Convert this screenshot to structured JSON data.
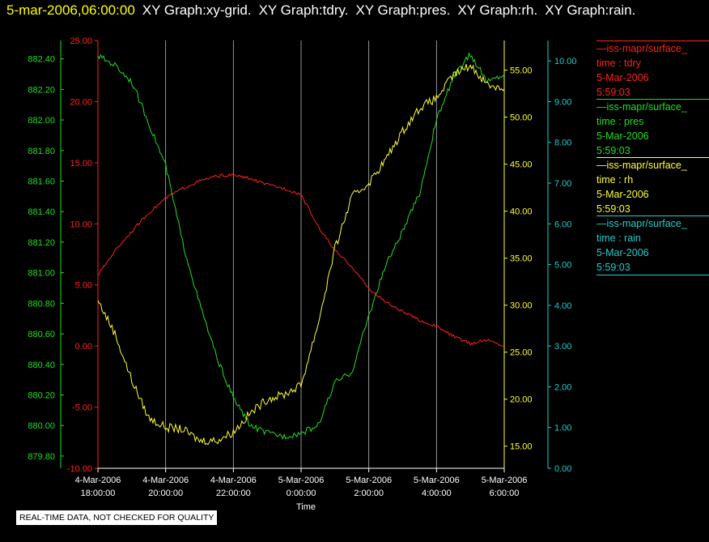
{
  "header": {
    "timestamp": "5-mar-2006,06:00:00",
    "graphs": [
      "XY Graph:xy-grid.",
      "XY Graph:tdry.",
      "XY Graph:pres.",
      "XY Graph:rh.",
      "XY Graph:rain."
    ]
  },
  "legend": [
    {
      "source": "—iss-mapr/surface_",
      "field": "time : tdry",
      "date": "5-Mar-2006",
      "time": "5:59:03",
      "color": "#ff2020"
    },
    {
      "source": "—iss-mapr/surface_",
      "field": "time : pres",
      "date": "5-Mar-2006",
      "time": "5:59:03",
      "color": "#22dd22"
    },
    {
      "source": "—iss-mapr/surface_",
      "field": "time : rh",
      "date": "5-Mar-2006",
      "time": "5:59:03",
      "color": "#ffff33"
    },
    {
      "source": "—iss-mapr/surface_",
      "field": "time : rain",
      "date": "5-Mar-2006",
      "time": "5:59:03",
      "color": "#22cccc"
    }
  ],
  "notice": "REAL-TIME DATA, NOT CHECKED FOR QUALITY",
  "chart_data": {
    "type": "line",
    "xlabel": "Time",
    "x_ticks": [
      {
        "date": "4-Mar-2006",
        "time": "18:00:00"
      },
      {
        "date": "4-Mar-2006",
        "time": "20:00:00"
      },
      {
        "date": "4-Mar-2006",
        "time": "22:00:00"
      },
      {
        "date": "5-Mar-2006",
        "time": "0:00:00"
      },
      {
        "date": "5-Mar-2006",
        "time": "2:00:00"
      },
      {
        "date": "5-Mar-2006",
        "time": "4:00:00"
      },
      {
        "date": "5-Mar-2006",
        "time": "6:00:00"
      }
    ],
    "x_range": [
      "4-Mar-2006 18:00:00",
      "5-Mar-2006 06:00:00"
    ],
    "vertical_grid": true,
    "axes": {
      "tdry": {
        "side": "left-inner",
        "color": "#ff2020",
        "range": [
          -10,
          25
        ],
        "ticks": [
          "-10.00",
          "-5.00",
          "0.00",
          "5.00",
          "10.00",
          "15.00",
          "20.00",
          "25.00"
        ]
      },
      "pres": {
        "side": "left-outer",
        "color": "#22dd22",
        "range": [
          879.72,
          882.52
        ],
        "ticks": [
          "879.80",
          "880.00",
          "880.20",
          "880.40",
          "880.60",
          "880.80",
          "881.00",
          "881.20",
          "881.40",
          "881.60",
          "881.80",
          "882.00",
          "882.20",
          "882.40"
        ]
      },
      "rh": {
        "side": "right-inner",
        "color": "#ffff33",
        "range": [
          12.65,
          58.15
        ],
        "ticks": [
          "15.00",
          "20.00",
          "25.00",
          "30.00",
          "35.00",
          "40.00",
          "45.00",
          "50.00",
          "55.00"
        ]
      },
      "rain": {
        "side": "right-outer",
        "color": "#22cccc",
        "range": [
          0,
          10.5
        ],
        "ticks": [
          "0.00",
          "1.00",
          "2.00",
          "3.00",
          "4.00",
          "5.00",
          "6.00",
          "7.00",
          "8.00",
          "9.00",
          "10.00"
        ]
      }
    },
    "series": [
      {
        "name": "tdry",
        "color": "#ff2020",
        "x_hours": [
          0,
          0.5,
          1,
          1.5,
          2,
          2.5,
          3,
          3.5,
          4,
          4.5,
          5,
          5.5,
          6,
          6.5,
          7,
          7.5,
          8,
          8.5,
          9,
          9.5,
          10,
          10.5,
          11,
          11.5,
          12
        ],
        "values": [
          5.8,
          7.8,
          9.4,
          10.9,
          12.1,
          12.9,
          13.5,
          13.9,
          14.0,
          13.7,
          13.2,
          12.9,
          12.4,
          9.8,
          7.8,
          6.5,
          4.7,
          3.6,
          2.8,
          2.1,
          1.6,
          0.8,
          0.2,
          0.5,
          0.0
        ]
      },
      {
        "name": "pres",
        "color": "#22dd22",
        "x_hours": [
          0,
          0.5,
          1,
          1.5,
          2,
          2.5,
          3,
          3.5,
          4,
          4.5,
          5,
          5.5,
          6,
          6.5,
          7,
          7.5,
          8,
          8.5,
          9,
          9.5,
          10,
          10.5,
          11,
          11.5,
          12
        ],
        "values": [
          882.42,
          882.36,
          882.25,
          881.98,
          881.7,
          881.2,
          880.8,
          880.45,
          880.18,
          880.0,
          879.95,
          879.93,
          879.95,
          880.0,
          880.28,
          880.35,
          880.72,
          881.05,
          881.27,
          881.52,
          882.0,
          882.28,
          882.43,
          882.25,
          882.3
        ]
      },
      {
        "name": "rh",
        "color": "#ffff33",
        "x_hours": [
          0,
          0.5,
          1,
          1.5,
          2,
          2.5,
          3,
          3.5,
          4,
          4.5,
          5,
          5.5,
          6,
          6.5,
          7,
          7.5,
          8,
          8.5,
          9,
          9.5,
          10,
          10.5,
          11,
          11.5,
          12
        ],
        "values": [
          30.5,
          27.0,
          22.0,
          18.0,
          17.0,
          16.8,
          15.6,
          15.6,
          16.5,
          18.5,
          20.0,
          20.5,
          21.5,
          28.0,
          36.0,
          41.5,
          43.0,
          45.5,
          48.5,
          51.0,
          52.0,
          54.5,
          55.5,
          53.5,
          53.0
        ]
      },
      {
        "name": "rain",
        "color": "#22cccc",
        "x_hours": [
          0,
          12
        ],
        "values": [
          0.0,
          0.0
        ]
      }
    ]
  }
}
